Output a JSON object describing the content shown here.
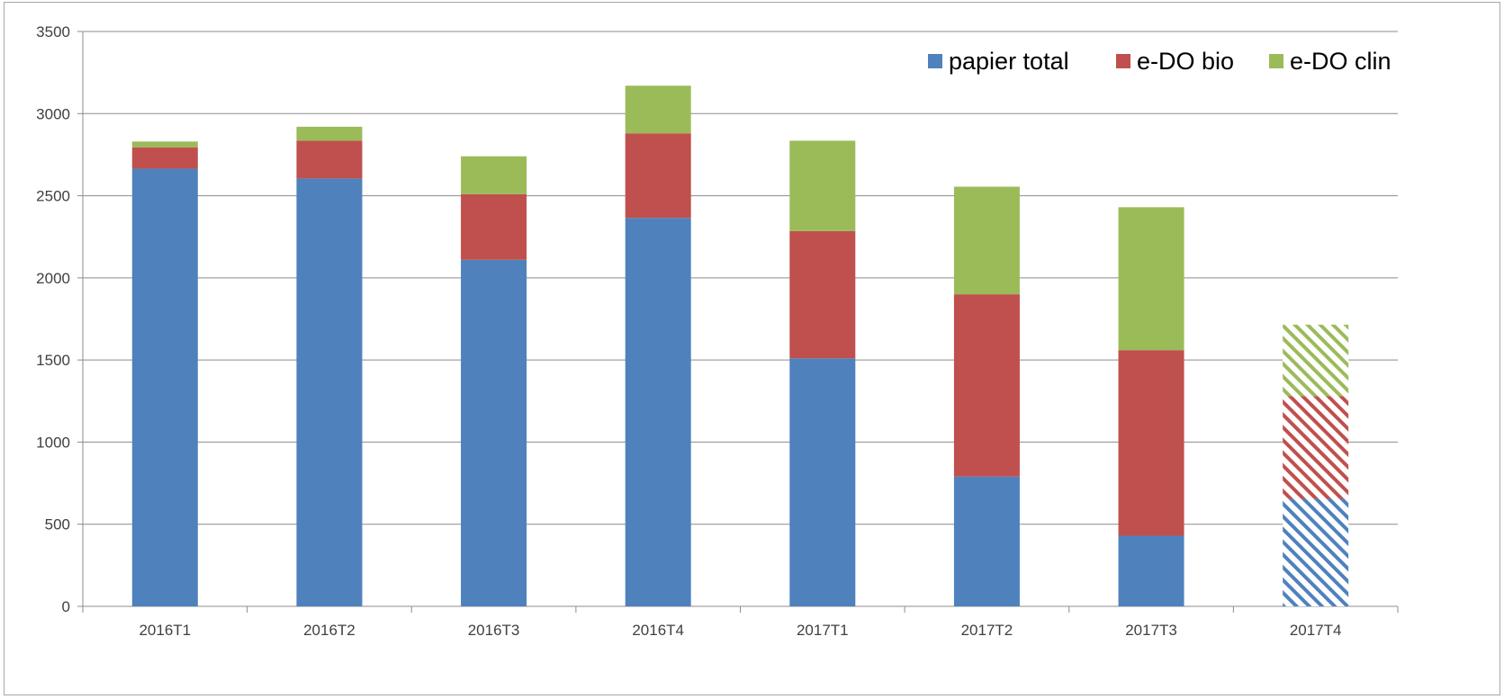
{
  "chart_data": {
    "type": "bar",
    "stacked": true,
    "categories": [
      "2016T1",
      "2016T2",
      "2016T3",
      "2016T4",
      "2017T1",
      "2017T2",
      "2017T3",
      "2017T4"
    ],
    "series": [
      {
        "name": "papier total",
        "color": "#4f81bd",
        "values": [
          2665,
          2605,
          2110,
          2365,
          1510,
          790,
          430,
          655
        ]
      },
      {
        "name": "e-DO bio",
        "color": "#c0504d",
        "values": [
          130,
          230,
          400,
          515,
          775,
          1110,
          1130,
          625
        ]
      },
      {
        "name": "e-DO clin",
        "color": "#9bbb59",
        "values": [
          35,
          85,
          230,
          290,
          550,
          655,
          870,
          435
        ]
      }
    ],
    "hatched_categories": [
      "2017T4"
    ],
    "ylim": [
      0,
      3500
    ],
    "yticks": [
      "0",
      "500",
      "1000",
      "1500",
      "2000",
      "2500",
      "3000",
      "3500"
    ],
    "grid": true,
    "legend_position": "top-right",
    "title": "",
    "xlabel": "",
    "ylabel": ""
  }
}
